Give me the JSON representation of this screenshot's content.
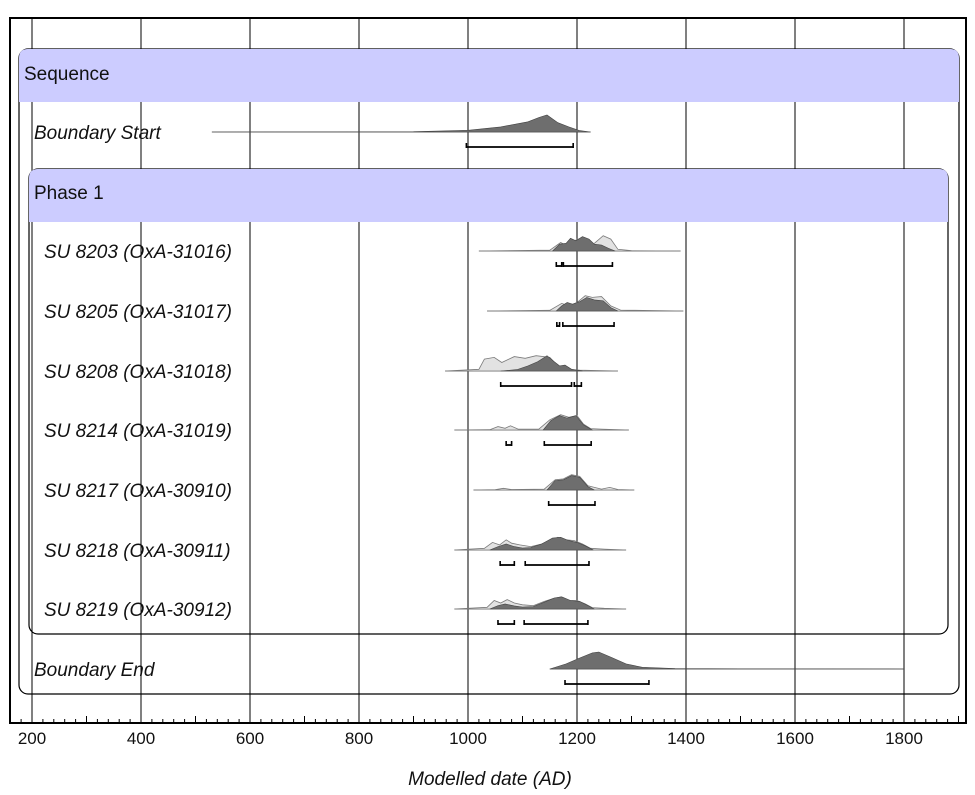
{
  "chart_data": {
    "type": "oxcal-multiplot",
    "xlabel": "Modelled date (AD)",
    "xlim": [
      170,
      1910
    ],
    "xticks": [
      200,
      400,
      600,
      800,
      1000,
      1200,
      1400,
      1600,
      1800
    ],
    "grid": true,
    "groups": [
      {
        "name": "Sequence",
        "kind": "sequence"
      },
      {
        "name": "Phase 1",
        "kind": "phase"
      }
    ],
    "rows": [
      {
        "name": "Boundary Start",
        "kind": "boundary",
        "range": [
          530,
          1225
        ],
        "modelled": [
          [
            530,
            0
          ],
          [
            900,
            0.02
          ],
          [
            1000,
            0.1
          ],
          [
            1060,
            0.3
          ],
          [
            1110,
            0.6
          ],
          [
            1130,
            0.85
          ],
          [
            1145,
            1
          ],
          [
            1165,
            0.55
          ],
          [
            1185,
            0.3
          ],
          [
            1205,
            0.08
          ],
          [
            1225,
            0
          ]
        ],
        "hpd": [
          [
            997,
            1193
          ]
        ]
      },
      {
        "name": "SU 8203 (OxA-31016)",
        "kind": "date",
        "range": [
          1020,
          1390
        ],
        "unmodelled": [
          [
            1020,
            0
          ],
          [
            1150,
            0.05
          ],
          [
            1170,
            0.5
          ],
          [
            1185,
            0.25
          ],
          [
            1200,
            0.7
          ],
          [
            1215,
            0.65
          ],
          [
            1230,
            0.4
          ],
          [
            1248,
            0.9
          ],
          [
            1262,
            0.7
          ],
          [
            1275,
            0.1
          ],
          [
            1300,
            0.02
          ],
          [
            1390,
            0
          ]
        ],
        "modelled": [
          [
            1155,
            0
          ],
          [
            1168,
            0.4
          ],
          [
            1180,
            0.45
          ],
          [
            1188,
            0.75
          ],
          [
            1198,
            0.6
          ],
          [
            1210,
            0.85
          ],
          [
            1222,
            0.7
          ],
          [
            1232,
            0.4
          ],
          [
            1245,
            0.35
          ],
          [
            1258,
            0.15
          ],
          [
            1270,
            0
          ]
        ],
        "hpd": [
          [
            1162,
            1172
          ],
          [
            1175,
            1265
          ]
        ]
      },
      {
        "name": "SU 8205 (OxA-31017)",
        "kind": "date",
        "range": [
          1035,
          1395
        ],
        "unmodelled": [
          [
            1035,
            0
          ],
          [
            1150,
            0.04
          ],
          [
            1172,
            0.45
          ],
          [
            1185,
            0.3
          ],
          [
            1200,
            0.5
          ],
          [
            1215,
            0.9
          ],
          [
            1228,
            0.8
          ],
          [
            1245,
            0.85
          ],
          [
            1262,
            0.3
          ],
          [
            1280,
            0.05
          ],
          [
            1395,
            0
          ]
        ],
        "modelled": [
          [
            1162,
            0
          ],
          [
            1172,
            0.3
          ],
          [
            1182,
            0.5
          ],
          [
            1192,
            0.4
          ],
          [
            1205,
            0.55
          ],
          [
            1218,
            0.8
          ],
          [
            1232,
            0.65
          ],
          [
            1248,
            0.6
          ],
          [
            1262,
            0.2
          ],
          [
            1275,
            0
          ]
        ],
        "hpd": [
          [
            1163,
            1168
          ],
          [
            1174,
            1268
          ]
        ]
      },
      {
        "name": "SU 8208 (OxA-31018)",
        "kind": "date",
        "range": [
          958,
          1275
        ],
        "unmodelled": [
          [
            958,
            0
          ],
          [
            1020,
            0.1
          ],
          [
            1030,
            0.7
          ],
          [
            1048,
            0.8
          ],
          [
            1062,
            0.5
          ],
          [
            1085,
            0.85
          ],
          [
            1105,
            0.75
          ],
          [
            1125,
            0.9
          ],
          [
            1150,
            0.8
          ],
          [
            1165,
            0.3
          ],
          [
            1180,
            0.1
          ],
          [
            1205,
            0.05
          ],
          [
            1275,
            0
          ]
        ],
        "modelled": [
          [
            1060,
            0
          ],
          [
            1090,
            0.08
          ],
          [
            1110,
            0.3
          ],
          [
            1128,
            0.55
          ],
          [
            1145,
            0.9
          ],
          [
            1158,
            0.55
          ],
          [
            1168,
            0.3
          ],
          [
            1178,
            0.35
          ],
          [
            1190,
            0.1
          ],
          [
            1210,
            0
          ]
        ],
        "hpd": [
          [
            1060,
            1190
          ],
          [
            1195,
            1208
          ]
        ]
      },
      {
        "name": "SU 8214 (OxA-31019)",
        "kind": "date",
        "range": [
          975,
          1295
        ],
        "unmodelled": [
          [
            975,
            0
          ],
          [
            1040,
            0.02
          ],
          [
            1055,
            0.2
          ],
          [
            1068,
            0.1
          ],
          [
            1078,
            0.25
          ],
          [
            1092,
            0.05
          ],
          [
            1130,
            0.05
          ],
          [
            1150,
            0.6
          ],
          [
            1170,
            0.9
          ],
          [
            1185,
            0.75
          ],
          [
            1200,
            0.85
          ],
          [
            1212,
            0.35
          ],
          [
            1225,
            0.08
          ],
          [
            1245,
            0.05
          ],
          [
            1295,
            0
          ]
        ],
        "modelled": [
          [
            1138,
            0
          ],
          [
            1152,
            0.55
          ],
          [
            1168,
            0.85
          ],
          [
            1182,
            0.7
          ],
          [
            1198,
            0.85
          ],
          [
            1212,
            0.3
          ],
          [
            1228,
            0
          ]
        ],
        "hpd": [
          [
            1070,
            1080
          ],
          [
            1140,
            1226
          ]
        ]
      },
      {
        "name": "SU 8217 (OxA-30910)",
        "kind": "date",
        "range": [
          1010,
          1305
        ],
        "unmodelled": [
          [
            1010,
            0
          ],
          [
            1050,
            0.02
          ],
          [
            1065,
            0.1
          ],
          [
            1080,
            0.03
          ],
          [
            1140,
            0.05
          ],
          [
            1160,
            0.6
          ],
          [
            1175,
            0.65
          ],
          [
            1190,
            0.9
          ],
          [
            1205,
            0.8
          ],
          [
            1220,
            0.25
          ],
          [
            1245,
            0.05
          ],
          [
            1260,
            0.15
          ],
          [
            1275,
            0.03
          ],
          [
            1305,
            0
          ]
        ],
        "modelled": [
          [
            1145,
            0
          ],
          [
            1160,
            0.55
          ],
          [
            1175,
            0.6
          ],
          [
            1190,
            0.85
          ],
          [
            1205,
            0.75
          ],
          [
            1220,
            0.2
          ],
          [
            1232,
            0
          ]
        ],
        "hpd": [
          [
            1148,
            1233
          ]
        ]
      },
      {
        "name": "SU 8218 (OxA-30911)",
        "kind": "date",
        "range": [
          975,
          1290
        ],
        "unmodelled": [
          [
            975,
            0
          ],
          [
            1030,
            0.1
          ],
          [
            1045,
            0.45
          ],
          [
            1058,
            0.3
          ],
          [
            1070,
            0.6
          ],
          [
            1080,
            0.4
          ],
          [
            1095,
            0.3
          ],
          [
            1115,
            0.2
          ],
          [
            1135,
            0.35
          ],
          [
            1150,
            0.55
          ],
          [
            1165,
            0.75
          ],
          [
            1180,
            0.6
          ],
          [
            1195,
            0.55
          ],
          [
            1210,
            0.35
          ],
          [
            1225,
            0.1
          ],
          [
            1250,
            0.05
          ],
          [
            1290,
            0
          ]
        ],
        "modelled": [
          [
            1040,
            0
          ],
          [
            1055,
            0.2
          ],
          [
            1070,
            0.35
          ],
          [
            1085,
            0.2
          ],
          [
            1100,
            0.12
          ],
          [
            1115,
            0.15
          ],
          [
            1135,
            0.35
          ],
          [
            1155,
            0.7
          ],
          [
            1170,
            0.75
          ],
          [
            1185,
            0.55
          ],
          [
            1200,
            0.45
          ],
          [
            1215,
            0.25
          ],
          [
            1230,
            0
          ]
        ],
        "hpd": [
          [
            1059,
            1085
          ],
          [
            1105,
            1222
          ]
        ]
      },
      {
        "name": "SU 8219 (OxA-30912)",
        "kind": "date",
        "range": [
          975,
          1290
        ],
        "unmodelled": [
          [
            975,
            0
          ],
          [
            1035,
            0.1
          ],
          [
            1048,
            0.5
          ],
          [
            1060,
            0.35
          ],
          [
            1072,
            0.55
          ],
          [
            1085,
            0.35
          ],
          [
            1100,
            0.25
          ],
          [
            1120,
            0.2
          ],
          [
            1140,
            0.45
          ],
          [
            1155,
            0.6
          ],
          [
            1170,
            0.7
          ],
          [
            1185,
            0.5
          ],
          [
            1200,
            0.5
          ],
          [
            1215,
            0.3
          ],
          [
            1228,
            0.08
          ],
          [
            1250,
            0.04
          ],
          [
            1290,
            0
          ]
        ],
        "modelled": [
          [
            1040,
            0
          ],
          [
            1055,
            0.2
          ],
          [
            1068,
            0.3
          ],
          [
            1085,
            0.18
          ],
          [
            1100,
            0.12
          ],
          [
            1120,
            0.15
          ],
          [
            1140,
            0.4
          ],
          [
            1158,
            0.65
          ],
          [
            1172,
            0.72
          ],
          [
            1188,
            0.5
          ],
          [
            1205,
            0.45
          ],
          [
            1220,
            0.2
          ],
          [
            1232,
            0
          ]
        ],
        "hpd": [
          [
            1055,
            1085
          ],
          [
            1103,
            1220
          ]
        ]
      },
      {
        "name": "Boundary End",
        "kind": "boundary",
        "range": [
          1150,
          1800
        ],
        "modelled": [
          [
            1150,
            0
          ],
          [
            1180,
            0.3
          ],
          [
            1205,
            0.65
          ],
          [
            1228,
            0.95
          ],
          [
            1240,
            1
          ],
          [
            1262,
            0.7
          ],
          [
            1290,
            0.3
          ],
          [
            1320,
            0.1
          ],
          [
            1380,
            0.03
          ],
          [
            1500,
            0.01
          ],
          [
            1800,
            0
          ]
        ],
        "hpd": [
          [
            1178,
            1332
          ]
        ]
      }
    ]
  }
}
